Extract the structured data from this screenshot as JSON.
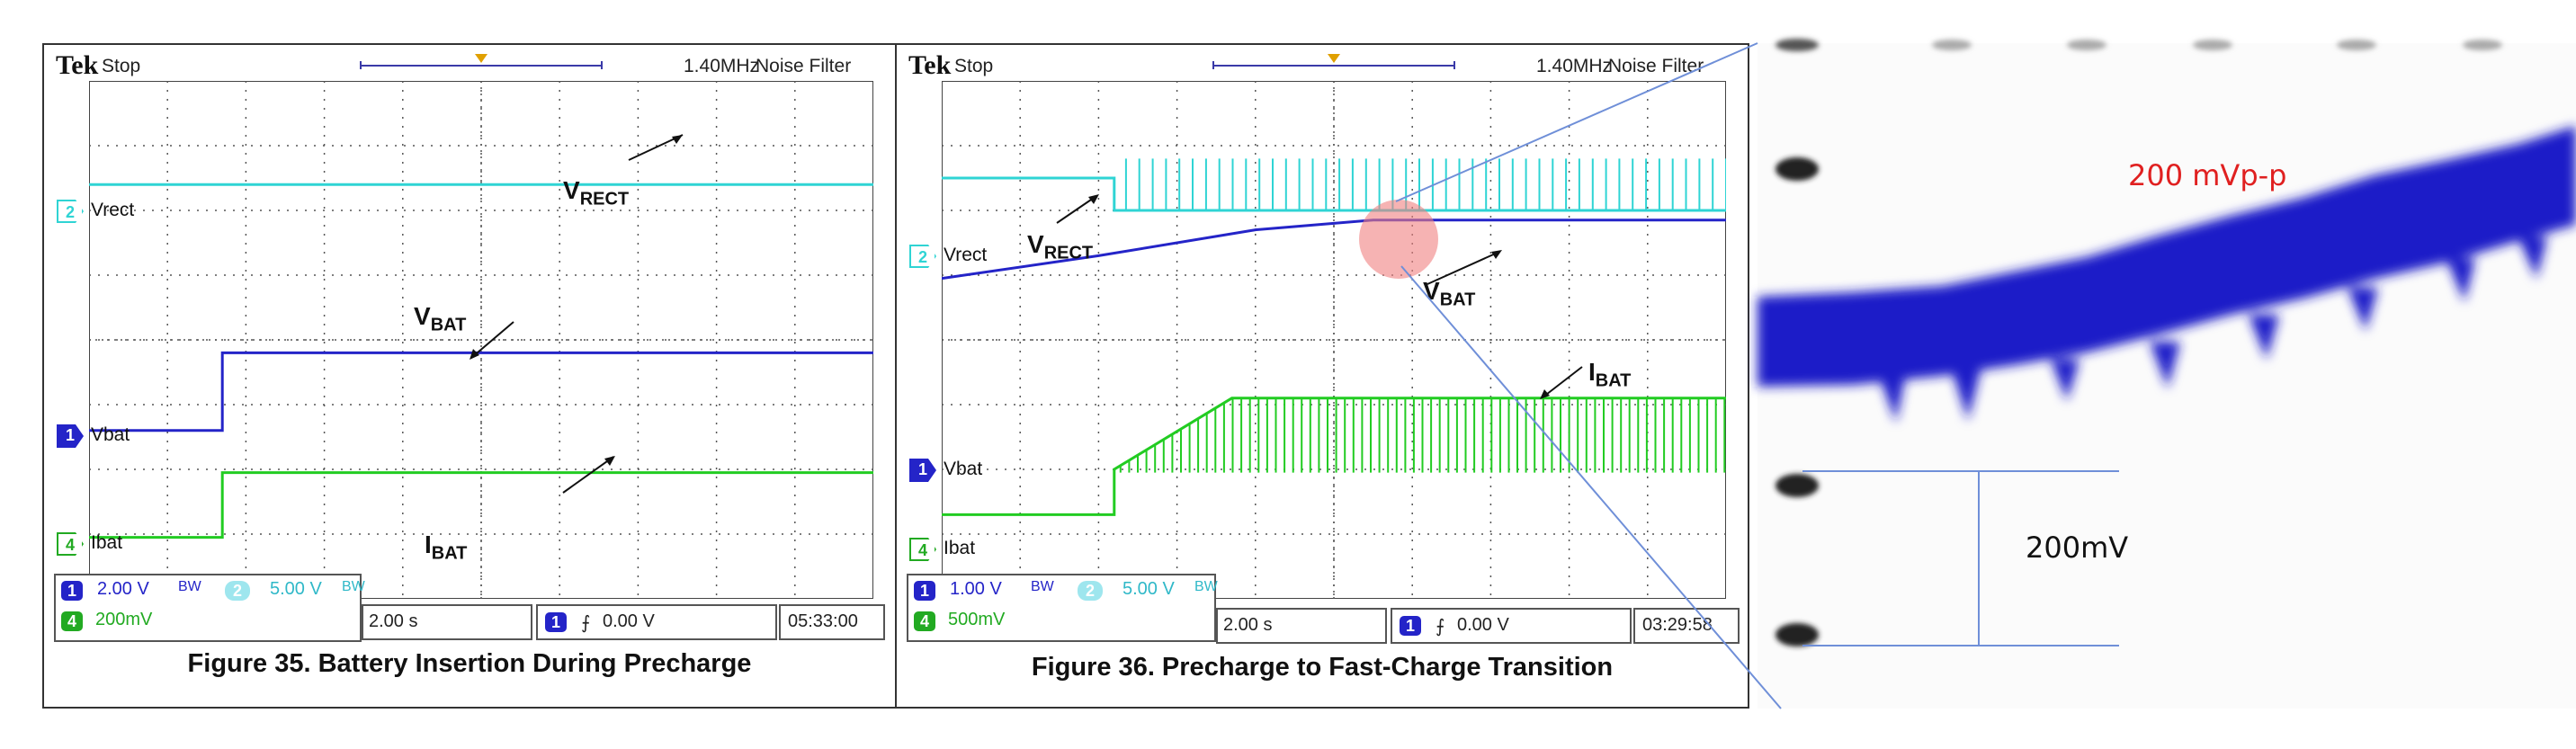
{
  "colors": {
    "vrect": "#2fd4d4",
    "vbat": "#2424c8",
    "ibat": "#22cc22",
    "grid": "#555555",
    "highlight": "#f08080",
    "annotation_red": "#e02020",
    "zoom_line": "#6f8fd8"
  },
  "fig35": {
    "brand": "Tek",
    "status": "Stop",
    "freq": "1.40MHz",
    "filter": "Noise Filter",
    "ch2_label": "Vrect",
    "ch1_label": "Vbat",
    "ch4_label": "Ibat",
    "ch1_num": "1",
    "ch2_num": "2",
    "ch4_num": "4",
    "ch1_scale": "2.00 V",
    "bw": "BW",
    "ch2_scale": "5.00 V",
    "ch4_scale": "200mV",
    "timebase": "2.00 s",
    "trigger": "0.00 V",
    "time": "05:33:00",
    "vrect_sig": "V",
    "vrect_sub": "RECT",
    "vbat_sig": "V",
    "vbat_sub": "BAT",
    "ibat_sig": "I",
    "ibat_sub": "BAT",
    "caption": "Figure 35. Battery Insertion During Precharge"
  },
  "fig36": {
    "brand": "Tek",
    "status": "Stop",
    "freq": "1.40MHz",
    "filter": "Noise Filter",
    "ch2_label": "Vrect",
    "ch1_label": "Vbat",
    "ch4_label": "Ibat",
    "ch1_num": "1",
    "ch2_num": "2",
    "ch4_num": "4",
    "ch1_scale": "1.00 V",
    "bw": "BW",
    "ch2_scale": "5.00 V",
    "ch4_scale": "500mV",
    "timebase": "2.00 s",
    "trigger": "0.00 V",
    "time": "03:29:58",
    "vrect_sig": "V",
    "vrect_sub": "RECT",
    "vbat_sig": "V",
    "vbat_sub": "BAT",
    "ibat_sig": "I",
    "ibat_sub": "BAT",
    "caption": "Figure 36. Precharge to Fast-Charge Transition"
  },
  "zoom": {
    "ripple_label": "200 mVp-p",
    "scale_label": "200mV"
  },
  "chart_data": [
    {
      "type": "line",
      "title": "Figure 35. Battery Insertion During Precharge",
      "x_divisions": 10,
      "y_divisions": 8,
      "timebase_per_div": "2.00 s",
      "grid": true,
      "series": [
        {
          "name": "VRECT",
          "x": [
            0,
            10
          ],
          "y_div": [
            6.4,
            6.4
          ]
        },
        {
          "name": "VBAT",
          "x": [
            0,
            1.7,
            1.7,
            10
          ],
          "y_div": [
            2.6,
            2.6,
            3.8,
            3.8
          ]
        },
        {
          "name": "IBAT",
          "x": [
            0,
            1.7,
            1.7,
            10
          ],
          "y_div": [
            0.95,
            0.95,
            1.95,
            1.95
          ]
        }
      ]
    },
    {
      "type": "line",
      "title": "Figure 36. Precharge to Fast-Charge Transition",
      "x_divisions": 10,
      "y_divisions": 8,
      "timebase_per_div": "2.00 s",
      "grid": true,
      "series": [
        {
          "name": "VRECT",
          "x": [
            0,
            2.2,
            2.2,
            10
          ],
          "y_div": [
            6.5,
            6.5,
            6.0,
            6.0
          ]
        },
        {
          "name": "VBAT",
          "x": [
            0,
            2,
            4,
            5.5,
            10
          ],
          "y_div": [
            4.95,
            5.3,
            5.7,
            5.85,
            5.85
          ]
        },
        {
          "name": "IBAT",
          "x": [
            0,
            2.2,
            2.2,
            3.7,
            10
          ],
          "y_div": [
            1.3,
            1.3,
            2.0,
            3.1,
            3.1
          ]
        }
      ]
    }
  ]
}
